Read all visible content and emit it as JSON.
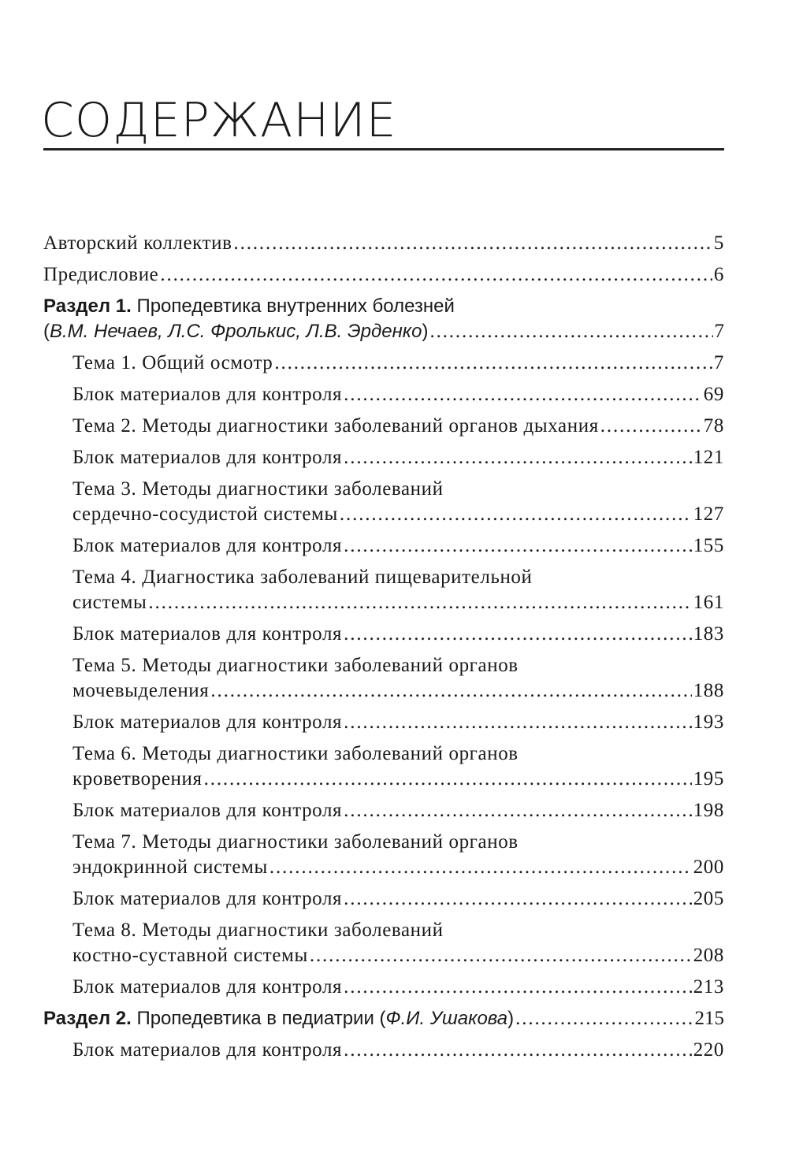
{
  "title": "СОДЕРЖАНИЕ",
  "entries": [
    {
      "level": 1,
      "style": "serif",
      "text": "Авторский коллектив",
      "page": "5"
    },
    {
      "level": 1,
      "style": "serif",
      "text": "Предисловие",
      "page": "6"
    },
    {
      "level": 1,
      "style": "section",
      "label": "Раздел 1.",
      "line1": "Пропедевтика внутренних болезней",
      "authors": "В.М. Нечаев, Л.С. Фролькис, Л.В. Эрденко",
      "page": "7"
    },
    {
      "level": 2,
      "text": "Тема 1. Общий осмотр",
      "page": "7"
    },
    {
      "level": 2,
      "text": "Блок материалов для контроля",
      "page": "69"
    },
    {
      "level": 2,
      "text": "Тема 2. Методы диагностики заболеваний органов дыхания",
      "page": "78"
    },
    {
      "level": 2,
      "text": "Блок материалов для контроля",
      "page": "121"
    },
    {
      "level": 2,
      "line1": "Тема 3. Методы диагностики заболеваний",
      "text": "сердечно-сосудистой системы",
      "page": "127"
    },
    {
      "level": 2,
      "text": "Блок материалов для контроля",
      "page": "155"
    },
    {
      "level": 2,
      "line1": "Тема 4. Диагностика заболеваний пищеварительной",
      "text": "системы",
      "page": "161"
    },
    {
      "level": 2,
      "text": "Блок материалов для контроля",
      "page": "183"
    },
    {
      "level": 2,
      "line1": "Тема 5. Методы диагностики заболеваний органов",
      "text": "мочевыделения",
      "page": "188"
    },
    {
      "level": 2,
      "text": "Блок материалов для контроля",
      "page": "193"
    },
    {
      "level": 2,
      "line1": "Тема 6. Методы диагностики заболеваний органов",
      "text": "кроветворения",
      "page": "195"
    },
    {
      "level": 2,
      "text": "Блок материалов для контроля",
      "page": "198"
    },
    {
      "level": 2,
      "line1": "Тема 7. Методы диагностики заболеваний органов",
      "text": "эндокринной системы",
      "page": "200"
    },
    {
      "level": 2,
      "text": "Блок материалов для контроля",
      "page": "205"
    },
    {
      "level": 2,
      "line1": "Тема 8. Методы диагностики заболеваний",
      "text": "костно-суставной системы",
      "page": "208"
    },
    {
      "level": 2,
      "text": "Блок материалов для контроля",
      "page": "213"
    },
    {
      "level": 1,
      "style": "section",
      "label": "Раздел 2.",
      "text": "Пропедевтика в педиатрии",
      "authors": "Ф.И. Ушакова",
      "page": "215"
    },
    {
      "level": 2,
      "text": "Блок материалов для контроля",
      "page": "220"
    }
  ]
}
